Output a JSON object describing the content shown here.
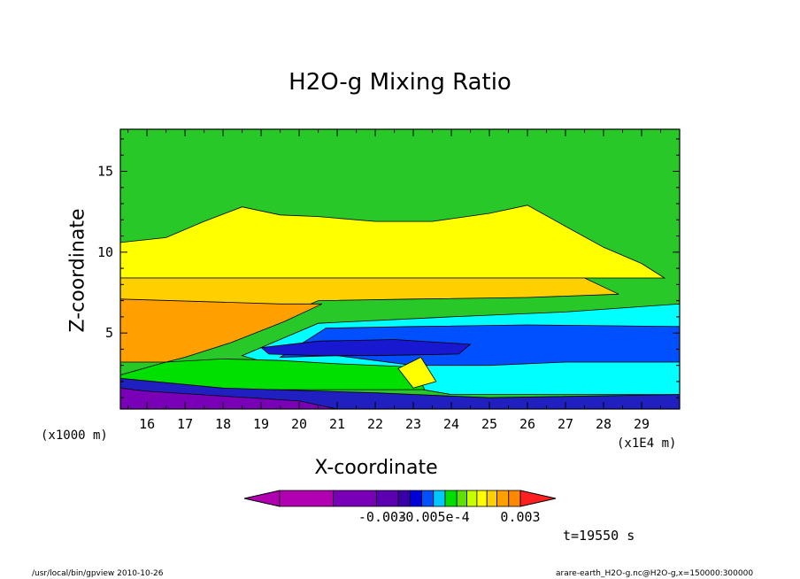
{
  "chart_data": {
    "type": "heatmap",
    "title": "H2O-g Mixing Ratio",
    "xlabel": "X-coordinate",
    "ylabel": "Z-coordinate",
    "x_unit_left": "(x1000 m)",
    "x_unit_right": "(x1E4 m)",
    "xlim": [
      15.3,
      30.0
    ],
    "ylim": [
      0.3,
      17.6
    ],
    "x_ticks": [
      16,
      17,
      18,
      19,
      20,
      21,
      22,
      23,
      24,
      25,
      26,
      27,
      28,
      29
    ],
    "y_ticks": [
      5,
      10,
      15
    ],
    "colorbar": {
      "labels": [
        "-0.003",
        "-0.005e-4",
        "0.003"
      ],
      "colors": [
        "#b000b0",
        "#b000b0",
        "#7a00b8",
        "#5a00b0",
        "#3a00a8",
        "#0000d8",
        "#0050ff",
        "#00c8ff",
        "#00e000",
        "#60e000",
        "#c8ff00",
        "#ffff00",
        "#ffd000",
        "#ffa000",
        "#ff8800",
        "#ff2020"
      ]
    },
    "regions": [
      {
        "name": "background",
        "color": "#28c828",
        "polygon": [
          [
            15.3,
            0.3
          ],
          [
            30,
            0.3
          ],
          [
            30,
            17.6
          ],
          [
            15.3,
            17.6
          ]
        ]
      },
      {
        "name": "upper-band",
        "color": "#ffff00",
        "polygon": [
          [
            15.3,
            10.6
          ],
          [
            16.5,
            10.9
          ],
          [
            17.5,
            11.9
          ],
          [
            18.5,
            12.8
          ],
          [
            19.5,
            12.3
          ],
          [
            20.5,
            12.2
          ],
          [
            22,
            11.9
          ],
          [
            23.5,
            11.9
          ],
          [
            25,
            12.4
          ],
          [
            26,
            12.9
          ],
          [
            27,
            11.6
          ],
          [
            28,
            10.3
          ],
          [
            29,
            9.3
          ],
          [
            29.6,
            8.4
          ],
          [
            15.3,
            8.4
          ]
        ]
      },
      {
        "name": "mid-orange",
        "color": "#ffd000",
        "polygon": [
          [
            15.3,
            8.4
          ],
          [
            27.5,
            8.4
          ],
          [
            28.4,
            7.4
          ],
          [
            26,
            7.2
          ],
          [
            23,
            7.1
          ],
          [
            20.5,
            7.0
          ],
          [
            20,
            6.5
          ],
          [
            18,
            4.5
          ],
          [
            15.3,
            3.5
          ]
        ]
      },
      {
        "name": "deep-orange",
        "color": "#ffa000",
        "polygon": [
          [
            15.3,
            7.1
          ],
          [
            19.5,
            6.8
          ],
          [
            20.6,
            6.8
          ],
          [
            19.6,
            5.7
          ],
          [
            18.2,
            4.4
          ],
          [
            17,
            3.5
          ],
          [
            16.5,
            3.2
          ],
          [
            15.3,
            3.2
          ]
        ]
      },
      {
        "name": "cyan-wedge",
        "color": "#00ffff",
        "polygon": [
          [
            20.5,
            5.6
          ],
          [
            24,
            6.0
          ],
          [
            27,
            6.3
          ],
          [
            30,
            6.8
          ],
          [
            30,
            1.2
          ],
          [
            24,
            1.2
          ],
          [
            22,
            2.0
          ],
          [
            20,
            2.6
          ],
          [
            18.5,
            3.6
          ]
        ]
      },
      {
        "name": "blue-core",
        "color": "#0050ff",
        "polygon": [
          [
            20.7,
            5.3
          ],
          [
            23,
            5.4
          ],
          [
            26,
            5.5
          ],
          [
            30,
            5.4
          ],
          [
            30,
            3.2
          ],
          [
            27,
            3.2
          ],
          [
            25,
            3.0
          ],
          [
            23,
            3.0
          ],
          [
            21,
            3.6
          ],
          [
            19.5,
            3.5
          ]
        ]
      },
      {
        "name": "dark-blue-core",
        "color": "#1818d0",
        "polygon": [
          [
            19.0,
            4.1
          ],
          [
            20.5,
            4.5
          ],
          [
            22.5,
            4.6
          ],
          [
            24.5,
            4.3
          ],
          [
            24.2,
            3.7
          ],
          [
            22,
            3.6
          ],
          [
            20.5,
            3.6
          ],
          [
            19.2,
            3.7
          ]
        ]
      },
      {
        "name": "lower-green-band",
        "color": "#00e000",
        "polygon": [
          [
            16.5,
            3.2
          ],
          [
            18,
            3.4
          ],
          [
            19.5,
            3.3
          ],
          [
            21,
            3.1
          ],
          [
            23,
            2.9
          ],
          [
            23.3,
            1.5
          ],
          [
            15.3,
            1.5
          ],
          [
            15.3,
            2.4
          ]
        ]
      },
      {
        "name": "low-yellow-streak",
        "color": "#ffff00",
        "polygon": [
          [
            22.6,
            2.8
          ],
          [
            23.2,
            3.5
          ],
          [
            23.6,
            2.0
          ],
          [
            23.0,
            1.6
          ]
        ]
      },
      {
        "name": "surface-blue",
        "color": "#2020c0",
        "polygon": [
          [
            15.3,
            0.3
          ],
          [
            30,
            0.3
          ],
          [
            30,
            1.2
          ],
          [
            25,
            1.0
          ],
          [
            22,
            1.3
          ],
          [
            18,
            1.6
          ],
          [
            15.3,
            2.2
          ]
        ]
      },
      {
        "name": "surface-purple",
        "color": "#7a00b8",
        "polygon": [
          [
            15.3,
            0.3
          ],
          [
            21,
            0.3
          ],
          [
            20,
            0.8
          ],
          [
            18,
            1.1
          ],
          [
            16,
            1.4
          ],
          [
            15.3,
            1.6
          ]
        ]
      }
    ]
  },
  "footer": {
    "time": "t=19550 s",
    "path_left": "/usr/local/bin/gpview  2010-10-26",
    "path_right": "arare-earth_H2O-g.nc@H2O-g,x=150000:300000"
  }
}
